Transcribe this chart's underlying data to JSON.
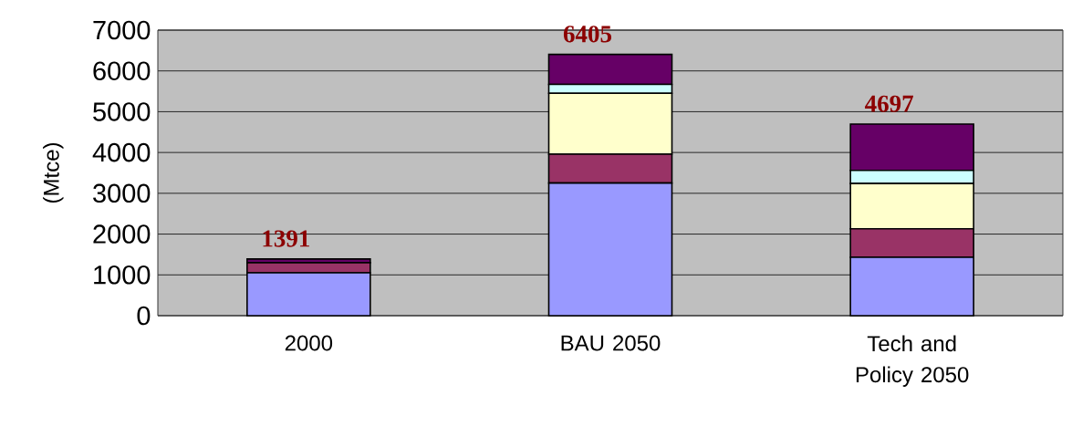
{
  "chart_data": {
    "type": "bar",
    "stacked": true,
    "ylabel": "(Mtce)",
    "categories": [
      "2000",
      "BAU 2050",
      "Tech and Policy 2050"
    ],
    "series": [
      {
        "color": "#9999ff",
        "values": [
          1050,
          3250,
          1430
        ]
      },
      {
        "color": "#993366",
        "values": [
          250,
          710,
          700
        ]
      },
      {
        "color": "#ffffcc",
        "values": [
          null,
          1490,
          1110
        ]
      },
      {
        "color": "#ccffff",
        "values": [
          null,
          220,
          320
        ]
      },
      {
        "color": "#660066",
        "values": [
          90,
          735,
          1137
        ]
      }
    ],
    "totals": [
      "1391",
      "6405",
      "4697"
    ],
    "ylim": [
      0,
      7000
    ],
    "yticks": [
      0,
      1000,
      2000,
      3000,
      4000,
      5000,
      6000,
      7000
    ],
    "grid": "y"
  }
}
